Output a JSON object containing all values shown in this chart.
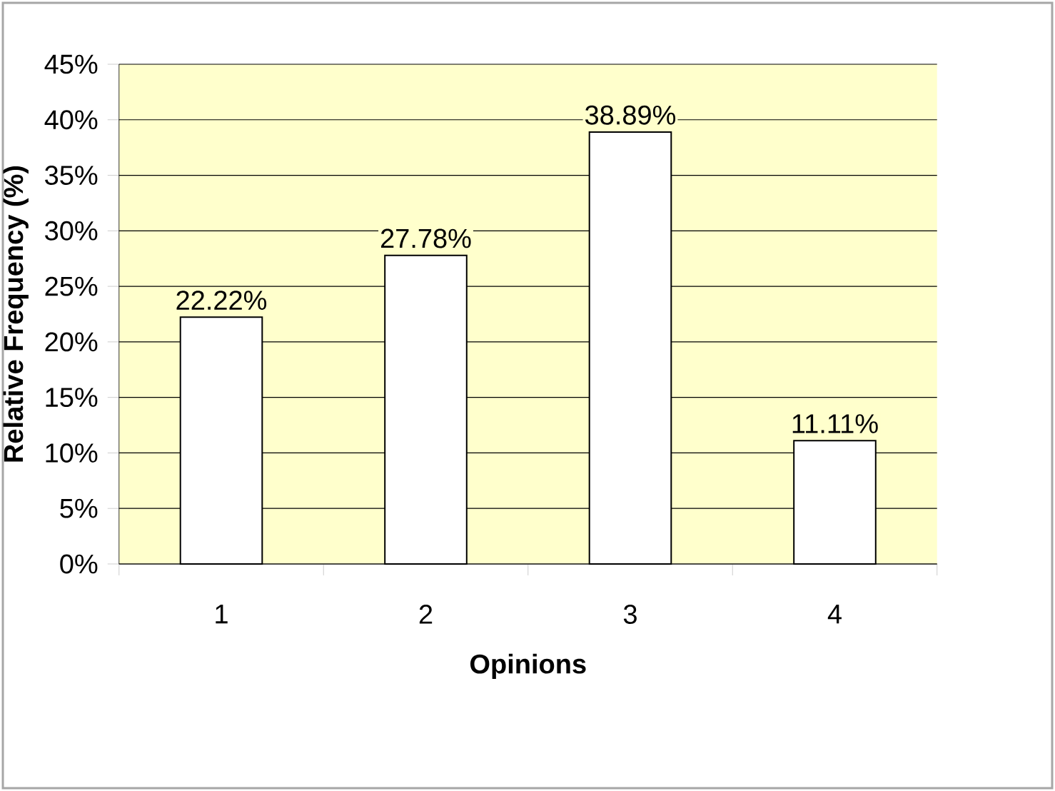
{
  "chart_data": {
    "type": "bar",
    "xlabel": "Opinions",
    "ylabel": "Relative Frequency (%)",
    "categories": [
      "1",
      "2",
      "3",
      "4"
    ],
    "values": [
      22.22,
      27.78,
      38.89,
      11.11
    ],
    "value_labels": [
      "22.22%",
      "27.78%",
      "38.89%",
      "11.11%"
    ],
    "color": "#ffffff",
    "ylim": [
      0,
      45
    ],
    "yticks": [
      {
        "value": 0,
        "label": "0%"
      },
      {
        "value": 5,
        "label": "5%"
      },
      {
        "value": 10,
        "label": "10%"
      },
      {
        "value": 15,
        "label": "15%"
      },
      {
        "value": 20,
        "label": "20%"
      },
      {
        "value": 25,
        "label": "25%"
      },
      {
        "value": 30,
        "label": "30%"
      },
      {
        "value": 35,
        "label": "35%"
      },
      {
        "value": 40,
        "label": "40%"
      },
      {
        "value": 45,
        "label": "45%"
      }
    ],
    "grid": "y"
  }
}
